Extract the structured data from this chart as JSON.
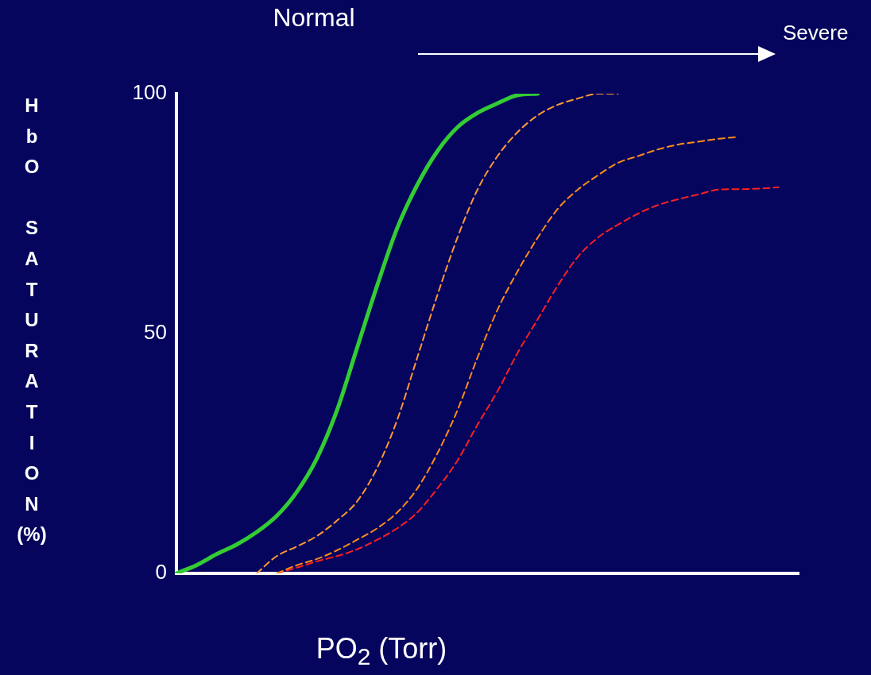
{
  "chart_data": {
    "type": "line",
    "ylabel": "HbO SATURATION (%)",
    "xlabel": "PO$_{2}$ (Torr)",
    "annotations": [
      "Normal",
      "Severe"
    ],
    "categories": [
      null,
      null,
      null,
      null,
      null,
      null,
      null,
      null,
      null,
      null,
      null,
      null,
      null,
      null,
      null,
      null,
      null,
      null,
      null,
      null,
      null,
      null,
      null,
      null,
      null,
      null,
      null,
      null,
      null,
      null,
      null,
      null
    ],
    "series": [
      {
        "color": "#33cc33",
        "line_style": "solid",
        "values": [
          0,
          1.7,
          4,
          6,
          8.6,
          12,
          17,
          24,
          34,
          47,
          60,
          72,
          81,
          88,
          93,
          96,
          98,
          99.7,
          100,
          null,
          null,
          null,
          null,
          null,
          null,
          null,
          null,
          null,
          null,
          null,
          null,
          null
        ]
      },
      {
        "color": "#ff9933",
        "line_style": "dashed",
        "values": [
          null,
          null,
          null,
          null,
          0,
          3.6,
          5.6,
          7.8,
          11,
          15,
          22,
          32,
          45,
          58,
          70,
          80,
          87,
          92,
          95.5,
          97.7,
          99,
          100,
          100,
          null,
          null,
          null,
          null,
          null,
          null,
          null,
          null,
          null
        ]
      },
      {
        "color": "#ff8c1a",
        "line_style": "dashed",
        "values": [
          null,
          null,
          null,
          null,
          null,
          0,
          1.7,
          3,
          4.8,
          7,
          9.4,
          12.7,
          17.7,
          25,
          34,
          45,
          55,
          63,
          70,
          76,
          80,
          83,
          85.6,
          87,
          88.4,
          89.4,
          90,
          90.6,
          91,
          null,
          null,
          null
        ]
      },
      {
        "color": "#ff2020",
        "line_style": "dashed",
        "values": [
          null,
          null,
          null,
          null,
          null,
          0,
          1.2,
          2.5,
          3.6,
          5,
          7,
          9.4,
          12.7,
          17.7,
          23.5,
          31,
          38,
          46,
          53,
          60,
          66,
          70,
          72.7,
          75,
          76.8,
          78,
          79,
          80,
          80.1,
          80.2,
          80.5,
          null
        ]
      }
    ],
    "ylim": [
      0,
      100
    ],
    "yticks": [
      0,
      50,
      100
    ],
    "grid": false,
    "legend": false
  }
}
